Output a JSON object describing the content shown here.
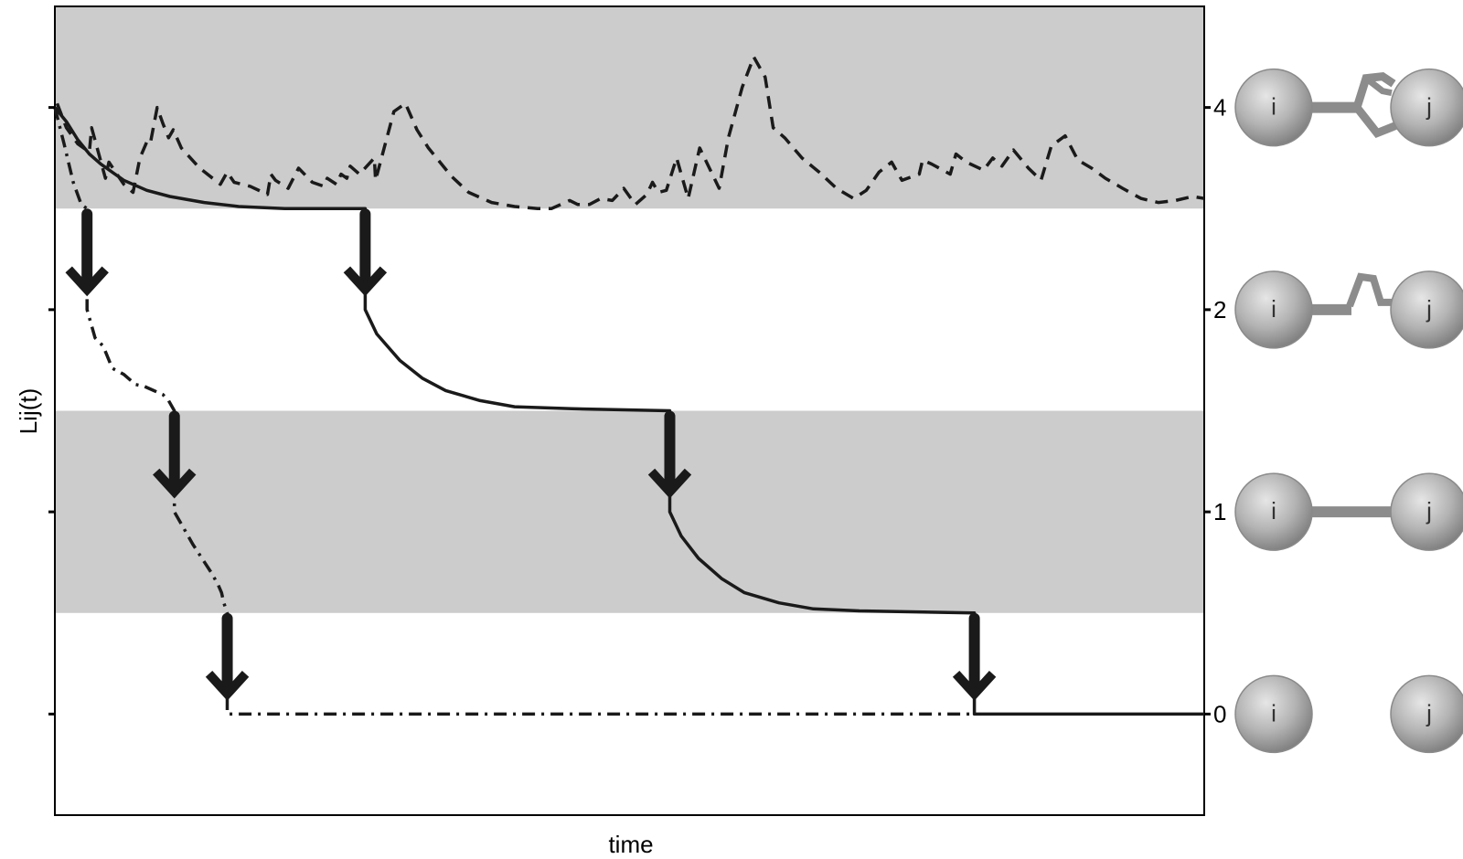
{
  "chart_data": {
    "type": "line",
    "title": "",
    "xlabel": "time",
    "ylabel": "Lij(t)",
    "xlim": [
      0,
      100
    ],
    "ylim": [
      -0.5,
      3.5
    ],
    "y_ticks": [
      0,
      1,
      2,
      4
    ],
    "y_tick_labels": [
      "0",
      "1",
      "2",
      "4"
    ],
    "grid": false,
    "legend": "none",
    "shaded_bands": [
      {
        "y_from": 0.5,
        "y_to": 1.5,
        "color": "#cccccc"
      },
      {
        "y_from": 2.5,
        "y_to": 3.5,
        "color": "#cccccc"
      }
    ],
    "series": [
      {
        "style": "solid",
        "points": [
          [
            0,
            3.0
          ],
          [
            1,
            2.93
          ],
          [
            2,
            2.84
          ],
          [
            3,
            2.77
          ],
          [
            4,
            2.72
          ],
          [
            6,
            2.64
          ],
          [
            8,
            2.59
          ],
          [
            10,
            2.56
          ],
          [
            13,
            2.53
          ],
          [
            16,
            2.51
          ],
          [
            20,
            2.5
          ],
          [
            27,
            2.5
          ],
          [
            27,
            2.0
          ],
          [
            28,
            1.88
          ],
          [
            30,
            1.75
          ],
          [
            32,
            1.66
          ],
          [
            34,
            1.6
          ],
          [
            37,
            1.55
          ],
          [
            40,
            1.52
          ],
          [
            45,
            1.51
          ],
          [
            53.5,
            1.5
          ],
          [
            53.5,
            1.0
          ],
          [
            54.5,
            0.88
          ],
          [
            56,
            0.77
          ],
          [
            58,
            0.67
          ],
          [
            60,
            0.6
          ],
          [
            63,
            0.55
          ],
          [
            66,
            0.52
          ],
          [
            70,
            0.51
          ],
          [
            80,
            0.5
          ],
          [
            80,
            0.0
          ],
          [
            100,
            0.0
          ]
        ]
      },
      {
        "style": "dashed",
        "points": [
          [
            0.2,
            3.02
          ],
          [
            1,
            2.9
          ],
          [
            2,
            2.82
          ],
          [
            3,
            2.78
          ],
          [
            3.2,
            2.9
          ],
          [
            4.4,
            2.65
          ],
          [
            4.7,
            2.73
          ],
          [
            6,
            2.62
          ],
          [
            6.8,
            2.58
          ],
          [
            7.4,
            2.75
          ],
          [
            8,
            2.83
          ],
          [
            8.3,
            2.82
          ],
          [
            8.9,
            3.0
          ],
          [
            9.4,
            2.92
          ],
          [
            9.9,
            2.85
          ],
          [
            10.3,
            2.89
          ],
          [
            11,
            2.8
          ],
          [
            12.6,
            2.7
          ],
          [
            14.4,
            2.62
          ],
          [
            15,
            2.68
          ],
          [
            15.6,
            2.63
          ],
          [
            17,
            2.61
          ],
          [
            18.5,
            2.57
          ],
          [
            18.8,
            2.67
          ],
          [
            19.2,
            2.64
          ],
          [
            20.3,
            2.6
          ],
          [
            21.2,
            2.7
          ],
          [
            22.4,
            2.63
          ],
          [
            23.4,
            2.61
          ],
          [
            23.7,
            2.65
          ],
          [
            24.5,
            2.62
          ],
          [
            24.9,
            2.67
          ],
          [
            25.4,
            2.65
          ],
          [
            25.7,
            2.71
          ],
          [
            26.5,
            2.67
          ],
          [
            27.8,
            2.75
          ],
          [
            27.9,
            2.64
          ],
          [
            29.5,
            2.98
          ],
          [
            30.5,
            3.02
          ],
          [
            31.5,
            2.89
          ],
          [
            32.5,
            2.8
          ],
          [
            34.5,
            2.66
          ],
          [
            36,
            2.58
          ],
          [
            38,
            2.53
          ],
          [
            40,
            2.51
          ],
          [
            42,
            2.5
          ],
          [
            43.2,
            2.5
          ],
          [
            44.8,
            2.54
          ],
          [
            45.5,
            2.52
          ],
          [
            46.5,
            2.52
          ],
          [
            47.5,
            2.55
          ],
          [
            48.5,
            2.54
          ],
          [
            49.5,
            2.6
          ],
          [
            50.5,
            2.52
          ],
          [
            51.5,
            2.57
          ],
          [
            52,
            2.63
          ],
          [
            52.5,
            2.58
          ],
          [
            53.2,
            2.59
          ],
          [
            54.1,
            2.75
          ],
          [
            55.1,
            2.55
          ],
          [
            56.1,
            2.8
          ],
          [
            57.8,
            2.6
          ],
          [
            58.6,
            2.85
          ],
          [
            59.8,
            3.1
          ],
          [
            60.8,
            3.25
          ],
          [
            61.8,
            3.15
          ],
          [
            62.5,
            2.9
          ],
          [
            63.5,
            2.85
          ],
          [
            65,
            2.75
          ],
          [
            66.5,
            2.68
          ],
          [
            68,
            2.6
          ],
          [
            69.5,
            2.55
          ],
          [
            70.6,
            2.59
          ],
          [
            71.7,
            2.68
          ],
          [
            72.8,
            2.73
          ],
          [
            73.7,
            2.64
          ],
          [
            75.2,
            2.67
          ],
          [
            75.5,
            2.74
          ],
          [
            76.3,
            2.72
          ],
          [
            77.9,
            2.67
          ],
          [
            78.4,
            2.77
          ],
          [
            79.3,
            2.73
          ],
          [
            80.8,
            2.69
          ],
          [
            81.6,
            2.75
          ],
          [
            82.4,
            2.71
          ],
          [
            83.4,
            2.79
          ],
          [
            84.7,
            2.7
          ],
          [
            85.8,
            2.64
          ],
          [
            86.7,
            2.81
          ],
          [
            87.9,
            2.86
          ],
          [
            89,
            2.74
          ],
          [
            90.2,
            2.7
          ],
          [
            91.4,
            2.65
          ],
          [
            92.9,
            2.6
          ],
          [
            94.5,
            2.55
          ],
          [
            96,
            2.53
          ],
          [
            97.5,
            2.54
          ],
          [
            99,
            2.56
          ],
          [
            100,
            2.55
          ]
        ]
      },
      {
        "style": "dashdot",
        "points": [
          [
            0,
            3.0
          ],
          [
            0.8,
            2.82
          ],
          [
            1.6,
            2.63
          ],
          [
            2.3,
            2.52
          ],
          [
            2.8,
            2.5
          ],
          [
            2.8,
            2.0
          ],
          [
            3.5,
            1.86
          ],
          [
            4.2,
            1.82
          ],
          [
            5,
            1.71
          ],
          [
            6,
            1.68
          ],
          [
            7,
            1.63
          ],
          [
            7.8,
            1.62
          ],
          [
            8.6,
            1.6
          ],
          [
            9.4,
            1.58
          ],
          [
            9.9,
            1.55
          ],
          [
            10.2,
            1.52
          ],
          [
            10.4,
            1.5
          ],
          [
            10.4,
            1.0
          ],
          [
            11.2,
            0.92
          ],
          [
            12,
            0.84
          ],
          [
            12.8,
            0.77
          ],
          [
            13.6,
            0.7
          ],
          [
            14.2,
            0.64
          ],
          [
            14.5,
            0.6
          ],
          [
            14.7,
            0.55
          ],
          [
            15,
            0.5
          ],
          [
            15,
            0.0
          ],
          [
            80,
            0.0
          ]
        ]
      }
    ],
    "transitions": [
      {
        "x": 2.8,
        "from": 2.5,
        "to": 2.0
      },
      {
        "x": 27,
        "from": 2.5,
        "to": 2.0
      },
      {
        "x": 10.4,
        "from": 1.5,
        "to": 1.0
      },
      {
        "x": 53.5,
        "from": 1.5,
        "to": 1.0
      },
      {
        "x": 15,
        "from": 0.5,
        "to": 0.0
      },
      {
        "x": 80,
        "from": 0.5,
        "to": 0.0
      }
    ],
    "state_icons": [
      {
        "level": 4,
        "left_label": "i",
        "right_label": "j",
        "link": "triple"
      },
      {
        "level": 2,
        "left_label": "i",
        "right_label": "j",
        "link": "double"
      },
      {
        "level": 1,
        "left_label": "i",
        "right_label": "j",
        "link": "single"
      },
      {
        "level": 0,
        "left_label": "i",
        "right_label": "j",
        "link": "none"
      }
    ],
    "colors": {
      "band": "#cccccc",
      "line": "#1a1a1a",
      "link": "#8c8c8c",
      "ball_light": "#e0e0e0",
      "ball_dark": "#808080"
    }
  }
}
